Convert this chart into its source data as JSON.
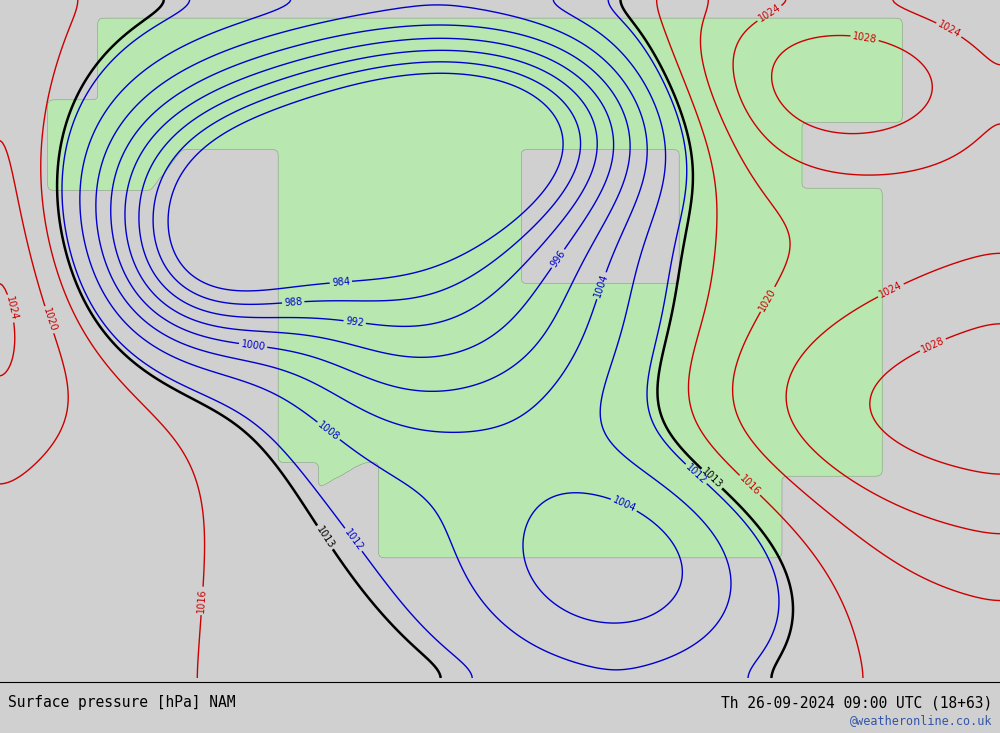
{
  "title_left": "Surface pressure [hPa] NAM",
  "title_right": "Th 26-09-2024 09:00 UTC (18+63)",
  "watermark": "@weatheronline.co.uk",
  "bg_color": "#d0d0d0",
  "land_color": "#b8e8b0",
  "ocean_color": "#d8d8d8",
  "figsize": [
    10.0,
    7.33
  ],
  "dpi": 100,
  "contour_interval": 4,
  "pressure_min": 984,
  "pressure_max": 1036,
  "label_fontsize": 7,
  "title_fontsize": 10.5
}
